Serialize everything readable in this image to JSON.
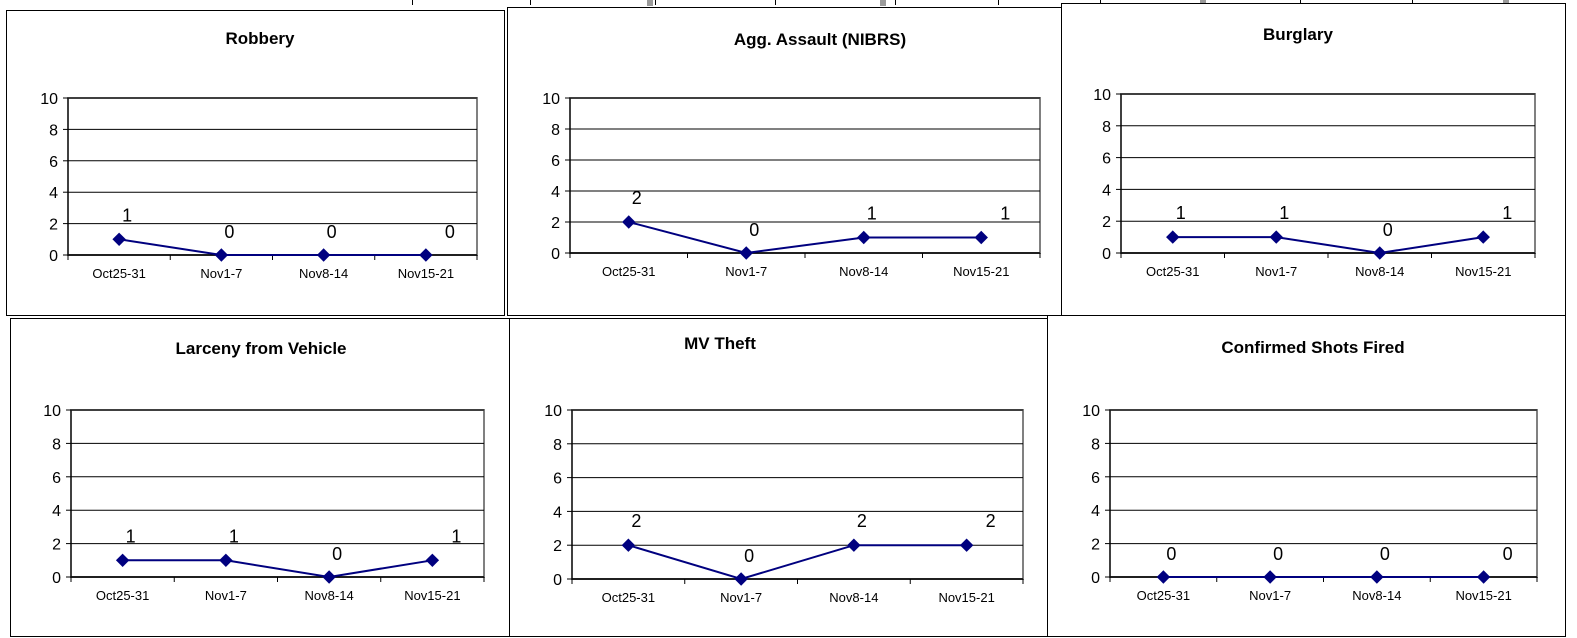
{
  "colors": {
    "series": "#00007f",
    "grid": "#000000",
    "plot_border": "#808080",
    "text": "#000000"
  },
  "chart_data": [
    {
      "type": "line",
      "title": "Robbery",
      "categories": [
        "Oct25-31",
        "Nov1-7",
        "Nov8-14",
        "Nov15-21"
      ],
      "values": [
        1,
        0,
        0,
        0
      ],
      "ylim": [
        0,
        10
      ],
      "yticks": [
        0,
        2,
        4,
        6,
        8,
        10
      ],
      "grid": true,
      "marker": "diamond",
      "data_labels": true
    },
    {
      "type": "line",
      "title": "Agg. Assault (NIBRS)",
      "categories": [
        "Oct25-31",
        "Nov1-7",
        "Nov8-14",
        "Nov15-21"
      ],
      "values": [
        2,
        0,
        1,
        1
      ],
      "ylim": [
        0,
        10
      ],
      "yticks": [
        0,
        2,
        4,
        6,
        8,
        10
      ],
      "grid": true,
      "marker": "diamond",
      "data_labels": true
    },
    {
      "type": "line",
      "title": "Burglary",
      "categories": [
        "Oct25-31",
        "Nov1-7",
        "Nov8-14",
        "Nov15-21"
      ],
      "values": [
        1,
        1,
        0,
        1
      ],
      "ylim": [
        0,
        10
      ],
      "yticks": [
        0,
        2,
        4,
        6,
        8,
        10
      ],
      "grid": true,
      "marker": "diamond",
      "data_labels": true
    },
    {
      "type": "line",
      "title": "Larceny from Vehicle",
      "categories": [
        "Oct25-31",
        "Nov1-7",
        "Nov8-14",
        "Nov15-21"
      ],
      "values": [
        1,
        1,
        0,
        1
      ],
      "ylim": [
        0,
        10
      ],
      "yticks": [
        0,
        2,
        4,
        6,
        8,
        10
      ],
      "grid": true,
      "marker": "diamond",
      "data_labels": true
    },
    {
      "type": "line",
      "title": "MV Theft",
      "categories": [
        "Oct25-31",
        "Nov1-7",
        "Nov8-14",
        "Nov15-21"
      ],
      "values": [
        2,
        0,
        2,
        2
      ],
      "ylim": [
        0,
        10
      ],
      "yticks": [
        0,
        2,
        4,
        6,
        8,
        10
      ],
      "grid": true,
      "marker": "diamond",
      "data_labels": true
    },
    {
      "type": "line",
      "title": "Confirmed Shots Fired",
      "categories": [
        "Oct25-31",
        "Nov1-7",
        "Nov8-14",
        "Nov15-21"
      ],
      "values": [
        0,
        0,
        0,
        0
      ],
      "ylim": [
        0,
        10
      ],
      "yticks": [
        0,
        2,
        4,
        6,
        8,
        10
      ],
      "grid": true,
      "marker": "diamond",
      "data_labels": true
    }
  ]
}
